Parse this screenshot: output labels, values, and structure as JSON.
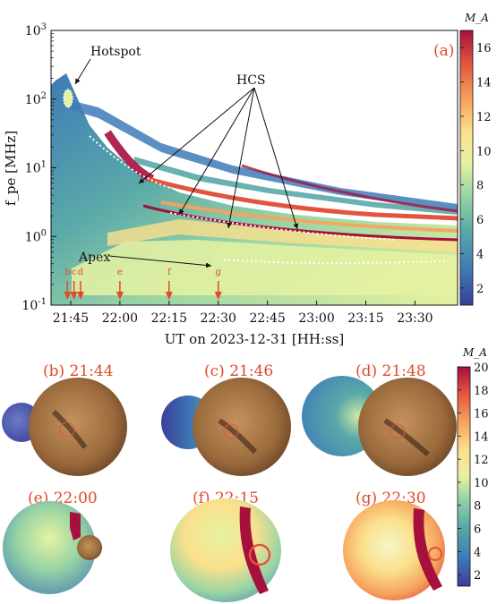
{
  "chart_data": [
    {
      "type": "heatmap",
      "panel_label": "(a)",
      "ylabel": "f_pe [MHz]",
      "xlabel": "UT on 2023-12-31 [HH:ss]",
      "yscale": "log",
      "ylim": [
        0.1,
        1000
      ],
      "xlim": [
        "21:39",
        "23:43"
      ],
      "y_ticks": [
        "10^-1",
        "10^0",
        "10^1",
        "10^2",
        "10^3"
      ],
      "x_ticks": [
        "21:45",
        "22:00",
        "22:15",
        "22:30",
        "22:45",
        "23:00",
        "23:15",
        "23:30"
      ],
      "colorbar": {
        "label": "M_A",
        "min": 1,
        "max": 17,
        "ticks": [
          "2",
          "4",
          "6",
          "8",
          "10",
          "12",
          "14",
          "16"
        ]
      },
      "annotations": [
        "Hotspot",
        "HCS",
        "Apex"
      ],
      "markers": [
        {
          "label": "b",
          "time": "21:44"
        },
        {
          "label": "c",
          "time": "21:46"
        },
        {
          "label": "d",
          "time": "21:48"
        },
        {
          "label": "e",
          "time": "22:00"
        },
        {
          "label": "f",
          "time": "22:15"
        },
        {
          "label": "g",
          "time": "22:30"
        }
      ]
    },
    {
      "type": "heatmap",
      "colorbar": {
        "label": "M_A",
        "min": 1,
        "max": 20,
        "ticks": [
          "2",
          "4",
          "6",
          "8",
          "10",
          "12",
          "14",
          "16",
          "18",
          "20"
        ]
      },
      "panels": [
        {
          "label": "(b) 21:44"
        },
        {
          "label": "(c) 21:46"
        },
        {
          "label": "(d) 21:48"
        },
        {
          "label": "(e) 22:00"
        },
        {
          "label": "(f) 22:15"
        },
        {
          "label": "(g) 22:30"
        }
      ]
    }
  ],
  "colors": {
    "accent": "#e0492a",
    "cmap": [
      "#3a3f9a",
      "#3e7bb6",
      "#5aa9a9",
      "#98d4a4",
      "#e6f2a2",
      "#fbe08c",
      "#f6a35c",
      "#e2543f",
      "#a6103c"
    ],
    "sun": "#8a5a32"
  }
}
